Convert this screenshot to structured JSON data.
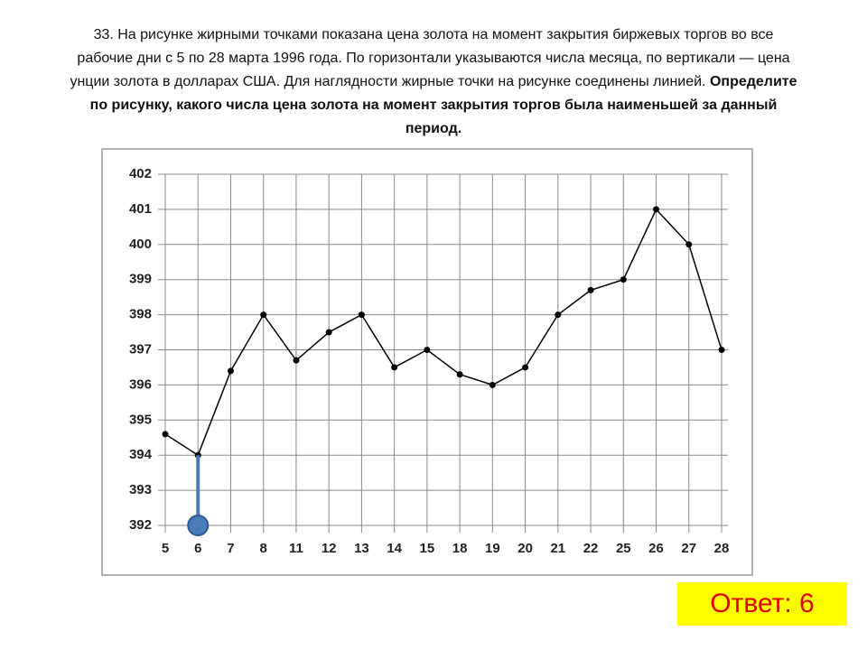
{
  "question": "33. На рисунке жирными точками показана цена золота на момент закрытия биржевых торгов во все рабочие дни с 5 по 28 марта 1996 года. По горизонтали указываются числа месяца, по вертикали — цена унции золота в долларах США. Для наглядности жирные точки на рисунке соединены линией.",
  "question_bold": "Определите по рисунку, какого числа цена золота на момент закрытия торгов была наименьшей за данный период.",
  "answer": "Ответ: 6",
  "chart_data": {
    "type": "line",
    "categories": [
      "5",
      "6",
      "7",
      "8",
      "11",
      "12",
      "13",
      "14",
      "15",
      "18",
      "19",
      "20",
      "21",
      "22",
      "25",
      "26",
      "27",
      "28"
    ],
    "values": [
      394.6,
      394.0,
      396.4,
      398.0,
      396.7,
      397.5,
      398.0,
      396.5,
      397.0,
      396.3,
      396.0,
      396.5,
      398.0,
      398.7,
      399.0,
      401.0,
      400.0,
      397.0
    ],
    "color": "#000000",
    "ylim": [
      392,
      402
    ],
    "yticks": [
      392,
      393,
      394,
      395,
      396,
      397,
      398,
      399,
      400,
      401,
      402
    ],
    "grid": true
  }
}
